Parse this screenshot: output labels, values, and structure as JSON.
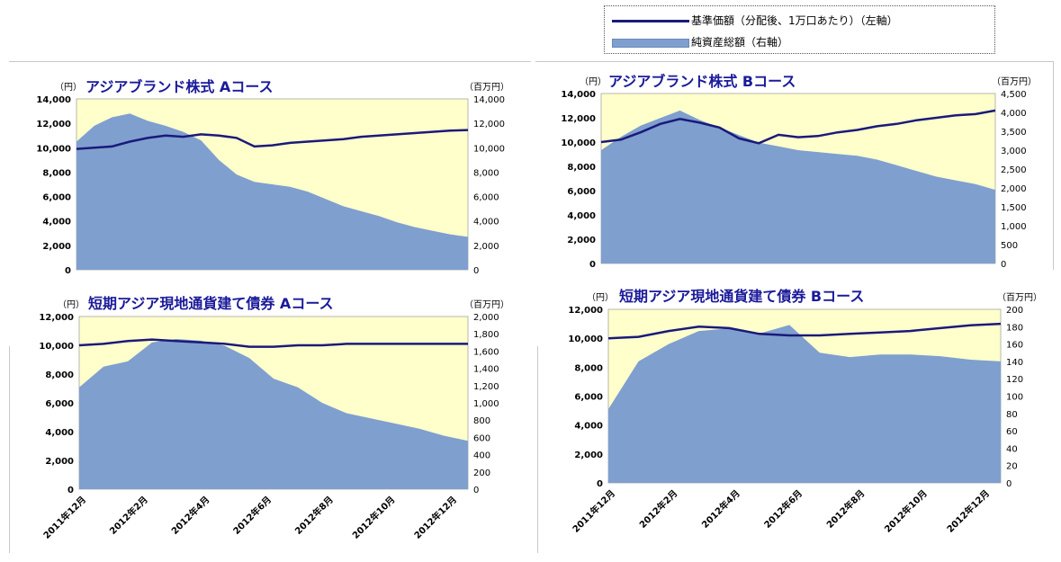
{
  "legend": {
    "line_label": "基準価額（分配後、1万口あたり）（左軸）",
    "area_label": "純資産総額（右軸）"
  },
  "colors": {
    "line": "#1a1a7a",
    "area": "#7f9fcf",
    "plot_bg": "#ffffcc",
    "title": "#1a1a9a"
  },
  "chart_data": [
    {
      "type": "area",
      "title": "アジアブランド株式 Aコース",
      "y_left_unit": "（円）",
      "y_right_unit": "（百万円）",
      "y_left_ticks": [
        "14,000",
        "12,000",
        "10,000",
        "8,000",
        "6,000",
        "4,000",
        "2,000",
        "0"
      ],
      "y_right_ticks": [
        "14,000",
        "12,000",
        "10,000",
        "8,000",
        "6,000",
        "4,000",
        "2,000",
        "0"
      ],
      "ylim_left": [
        0,
        14000
      ],
      "ylim_right": [
        0,
        14000
      ],
      "series": [
        {
          "name": "基準価額（分配後、1万口あたり）（左軸）",
          "axis": "left",
          "kind": "line",
          "values": [
            9900,
            10000,
            10100,
            10500,
            10800,
            11000,
            10900,
            11100,
            11000,
            10800,
            10100,
            10200,
            10400,
            10500,
            10600,
            10700,
            10900,
            11000,
            11100,
            11200,
            11300,
            11400,
            11450
          ]
        },
        {
          "name": "純資産総額（右軸）",
          "axis": "right",
          "kind": "area",
          "values": [
            10500,
            11800,
            12500,
            12800,
            12200,
            11800,
            11300,
            10600,
            9000,
            7800,
            7200,
            7000,
            6800,
            6400,
            5800,
            5200,
            4800,
            4400,
            3900,
            3500,
            3200,
            2900,
            2700
          ]
        }
      ]
    },
    {
      "type": "area",
      "title": "アジアブランド株式 Bコース",
      "y_left_unit": "（円）",
      "y_right_unit": "（百万円）",
      "y_left_ticks": [
        "14,000",
        "12,000",
        "10,000",
        "8,000",
        "6,000",
        "4,000",
        "2,000",
        "0"
      ],
      "y_right_ticks": [
        "4,500",
        "4,000",
        "3,500",
        "3,000",
        "2,500",
        "2,000",
        "1,500",
        "1,000",
        "500",
        "0"
      ],
      "ylim_left": [
        0,
        14000
      ],
      "ylim_right": [
        0,
        4500
      ],
      "series": [
        {
          "name": "基準価額（分配後、1万口あたり）（左軸）",
          "axis": "left",
          "kind": "line",
          "values": [
            10000,
            10200,
            10800,
            11500,
            11900,
            11600,
            11200,
            10300,
            9900,
            10600,
            10400,
            10500,
            10800,
            11000,
            11300,
            11500,
            11800,
            12000,
            12200,
            12300,
            12600
          ]
        },
        {
          "name": "純資産総額（右軸）",
          "axis": "right",
          "kind": "area",
          "values": [
            3000,
            3350,
            3650,
            3850,
            4050,
            3800,
            3600,
            3400,
            3200,
            3100,
            3000,
            2950,
            2900,
            2850,
            2750,
            2600,
            2450,
            2300,
            2200,
            2100,
            1950
          ]
        }
      ]
    },
    {
      "type": "area",
      "title": "短期アジア現地通貨建て債券 Aコース",
      "y_left_unit": "（円）",
      "y_right_unit": "（百万円）",
      "y_left_ticks": [
        "12,000",
        "10,000",
        "8,000",
        "6,000",
        "4,000",
        "2,000",
        "0"
      ],
      "y_right_ticks": [
        "2,000",
        "1,800",
        "1,600",
        "1,400",
        "1,200",
        "1,000",
        "800",
        "600",
        "400",
        "200",
        "0"
      ],
      "ylim_left": [
        0,
        12000
      ],
      "ylim_right": [
        0,
        2000
      ],
      "x_ticks": [
        "2011年12月",
        "2012年2月",
        "2012年4月",
        "2012年6月",
        "2012年8月",
        "2012年10月",
        "2012年12月"
      ],
      "series": [
        {
          "name": "基準価額（分配後、1万口あたり）（左軸）",
          "axis": "left",
          "kind": "line",
          "values": [
            10000,
            10100,
            10300,
            10400,
            10300,
            10200,
            10100,
            9900,
            9900,
            10000,
            10000,
            10100,
            10100,
            10100,
            10100,
            10100,
            10100
          ]
        },
        {
          "name": "純資産総額（右軸）",
          "axis": "right",
          "kind": "area",
          "values": [
            1180,
            1420,
            1480,
            1700,
            1740,
            1720,
            1660,
            1520,
            1280,
            1180,
            1000,
            880,
            820,
            760,
            700,
            620,
            560
          ]
        }
      ]
    },
    {
      "type": "area",
      "title": "短期アジア現地通貨建て債券 Bコース",
      "y_left_unit": "（円）",
      "y_right_unit": "（百万円）",
      "y_left_ticks": [
        "12,000",
        "10,000",
        "8,000",
        "6,000",
        "4,000",
        "2,000",
        "0"
      ],
      "y_right_ticks": [
        "200",
        "180",
        "160",
        "140",
        "120",
        "100",
        "80",
        "60",
        "40",
        "20",
        "0"
      ],
      "ylim_left": [
        0,
        12000
      ],
      "ylim_right": [
        0,
        200
      ],
      "x_ticks": [
        "2011年12月",
        "2012年2月",
        "2012年4月",
        "2012年6月",
        "2012年8月",
        "2012年10月",
        "2012年12月"
      ],
      "series": [
        {
          "name": "基準価額（分配後、1万口あたり）（左軸）",
          "axis": "left",
          "kind": "line",
          "values": [
            10000,
            10100,
            10500,
            10800,
            10700,
            10300,
            10200,
            10200,
            10300,
            10400,
            10500,
            10700,
            10900,
            11000
          ]
        },
        {
          "name": "純資産総額（右軸）",
          "axis": "right",
          "kind": "area",
          "values": [
            85,
            140,
            160,
            175,
            178,
            172,
            182,
            150,
            145,
            148,
            148,
            146,
            142,
            140
          ]
        }
      ]
    }
  ]
}
